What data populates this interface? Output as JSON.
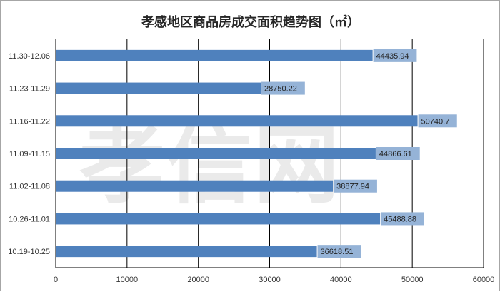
{
  "chart_data": {
    "type": "bar",
    "orientation": "horizontal",
    "title": "孝感地区商品房成交面积趋势图（㎡）",
    "categories": [
      "11.30-12.06",
      "11.23-11.29",
      "11.16-11.22",
      "11.09-11.15",
      "11.02-11.08",
      "10.26-11.01",
      "10.19-10.25"
    ],
    "values": [
      44435.94,
      28750.22,
      50740.7,
      44866.61,
      38877.94,
      45488.88,
      36618.51
    ],
    "value_labels": [
      "44435.94",
      "28750.22",
      "50740.7",
      "44866.61",
      "38877.94",
      "45488.88",
      "36618.51"
    ],
    "xlim": [
      0,
      60000
    ],
    "xticks": [
      "0",
      "10000",
      "20000",
      "30000",
      "40000",
      "50000",
      "60000"
    ],
    "grid": true,
    "bar_color": "#4f81bd",
    "label_box_color": "#95b3d7",
    "watermark": "孝信网"
  }
}
